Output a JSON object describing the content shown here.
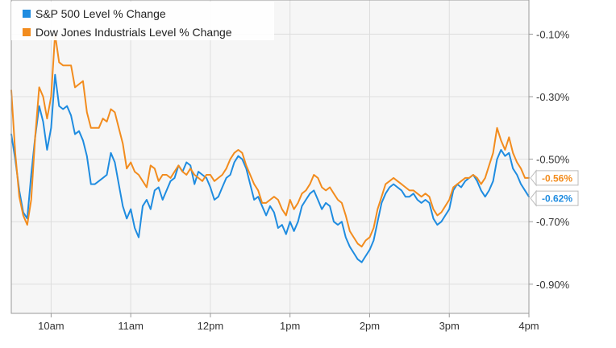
{
  "chart_data": {
    "type": "line",
    "title": "",
    "xlabel": "",
    "ylabel": "",
    "x_ticks": [
      "10am",
      "11am",
      "12pm",
      "1pm",
      "2pm",
      "3pm",
      "4pm"
    ],
    "y_ticks": [
      "-0.10%",
      "-0.30%",
      "-0.50%",
      "-0.70%",
      "-0.90%"
    ],
    "y_tick_values": [
      -0.1,
      -0.3,
      -0.5,
      -0.7,
      -0.9
    ],
    "ylim": [
      -1.0,
      0.0
    ],
    "xlim": [
      "9:30am",
      "4pm"
    ],
    "grid": true,
    "legend_position": "top-left",
    "series": [
      {
        "name": "S&P 500 Level % Change",
        "color": "#1f8ce0",
        "end_label": "-0.62%",
        "points": [
          [
            "9:30am",
            -0.42
          ],
          [
            "9:33am",
            -0.5
          ],
          [
            "9:36am",
            -0.6
          ],
          [
            "9:39am",
            -0.67
          ],
          [
            "9:42am",
            -0.69
          ],
          [
            "9:45am",
            -0.55
          ],
          [
            "9:48am",
            -0.43
          ],
          [
            "9:51am",
            -0.33
          ],
          [
            "9:54am",
            -0.38
          ],
          [
            "9:57am",
            -0.47
          ],
          [
            "10:00am",
            -0.4
          ],
          [
            "10:03am",
            -0.23
          ],
          [
            "10:06am",
            -0.33
          ],
          [
            "10:09am",
            -0.34
          ],
          [
            "10:12am",
            -0.33
          ],
          [
            "10:15am",
            -0.36
          ],
          [
            "10:18am",
            -0.42
          ],
          [
            "10:21am",
            -0.41
          ],
          [
            "10:24am",
            -0.44
          ],
          [
            "10:27am",
            -0.49
          ],
          [
            "10:30am",
            -0.58
          ],
          [
            "10:33am",
            -0.58
          ],
          [
            "10:36am",
            -0.57
          ],
          [
            "10:39am",
            -0.56
          ],
          [
            "10:42am",
            -0.55
          ],
          [
            "10:45am",
            -0.48
          ],
          [
            "10:48am",
            -0.51
          ],
          [
            "10:51am",
            -0.58
          ],
          [
            "10:54am",
            -0.65
          ],
          [
            "10:57am",
            -0.69
          ],
          [
            "11:00am",
            -0.66
          ],
          [
            "11:03am",
            -0.72
          ],
          [
            "11:06am",
            -0.75
          ],
          [
            "11:09am",
            -0.65
          ],
          [
            "11:12am",
            -0.63
          ],
          [
            "11:15am",
            -0.66
          ],
          [
            "11:18am",
            -0.6
          ],
          [
            "11:21am",
            -0.59
          ],
          [
            "11:24am",
            -0.63
          ],
          [
            "11:27am",
            -0.6
          ],
          [
            "11:30am",
            -0.57
          ],
          [
            "11:33am",
            -0.56
          ],
          [
            "11:36am",
            -0.52
          ],
          [
            "11:39am",
            -0.54
          ],
          [
            "11:42am",
            -0.51
          ],
          [
            "11:45am",
            -0.52
          ],
          [
            "11:48am",
            -0.58
          ],
          [
            "11:51am",
            -0.54
          ],
          [
            "11:54am",
            -0.55
          ],
          [
            "11:57am",
            -0.56
          ],
          [
            "12:00pm",
            -0.59
          ],
          [
            "12:03pm",
            -0.63
          ],
          [
            "12:06pm",
            -0.62
          ],
          [
            "12:09pm",
            -0.59
          ],
          [
            "12:12pm",
            -0.56
          ],
          [
            "12:15pm",
            -0.55
          ],
          [
            "12:18pm",
            -0.51
          ],
          [
            "12:21pm",
            -0.49
          ],
          [
            "12:24pm",
            -0.5
          ],
          [
            "12:27pm",
            -0.53
          ],
          [
            "12:30pm",
            -0.58
          ],
          [
            "12:33pm",
            -0.63
          ],
          [
            "12:36pm",
            -0.62
          ],
          [
            "12:39pm",
            -0.65
          ],
          [
            "12:42pm",
            -0.68
          ],
          [
            "12:45pm",
            -0.65
          ],
          [
            "12:48pm",
            -0.67
          ],
          [
            "12:51pm",
            -0.72
          ],
          [
            "12:54pm",
            -0.71
          ],
          [
            "12:57pm",
            -0.74
          ],
          [
            "1:00pm",
            -0.7
          ],
          [
            "1:03pm",
            -0.73
          ],
          [
            "1:06pm",
            -0.7
          ],
          [
            "1:09pm",
            -0.65
          ],
          [
            "1:12pm",
            -0.63
          ],
          [
            "1:15pm",
            -0.61
          ],
          [
            "1:18pm",
            -0.6
          ],
          [
            "1:21pm",
            -0.63
          ],
          [
            "1:24pm",
            -0.66
          ],
          [
            "1:27pm",
            -0.64
          ],
          [
            "1:30pm",
            -0.65
          ],
          [
            "1:33pm",
            -0.7
          ],
          [
            "1:36pm",
            -0.71
          ],
          [
            "1:39pm",
            -0.7
          ],
          [
            "1:42pm",
            -0.75
          ],
          [
            "1:45pm",
            -0.78
          ],
          [
            "1:48pm",
            -0.8
          ],
          [
            "1:51pm",
            -0.82
          ],
          [
            "1:54pm",
            -0.83
          ],
          [
            "1:57pm",
            -0.81
          ],
          [
            "2:00pm",
            -0.79
          ],
          [
            "2:03pm",
            -0.76
          ],
          [
            "2:06pm",
            -0.7
          ],
          [
            "2:09pm",
            -0.64
          ],
          [
            "2:12pm",
            -0.61
          ],
          [
            "2:15pm",
            -0.59
          ],
          [
            "2:18pm",
            -0.58
          ],
          [
            "2:21pm",
            -0.59
          ],
          [
            "2:24pm",
            -0.6
          ],
          [
            "2:27pm",
            -0.62
          ],
          [
            "2:30pm",
            -0.62
          ],
          [
            "2:33pm",
            -0.61
          ],
          [
            "2:36pm",
            -0.63
          ],
          [
            "2:39pm",
            -0.64
          ],
          [
            "2:42pm",
            -0.63
          ],
          [
            "2:45pm",
            -0.64
          ],
          [
            "2:48pm",
            -0.69
          ],
          [
            "2:51pm",
            -0.71
          ],
          [
            "2:54pm",
            -0.7
          ],
          [
            "2:57pm",
            -0.68
          ],
          [
            "3:00pm",
            -0.66
          ],
          [
            "3:03pm",
            -0.6
          ],
          [
            "3:06pm",
            -0.58
          ],
          [
            "3:09pm",
            -0.59
          ],
          [
            "3:12pm",
            -0.57
          ],
          [
            "3:15pm",
            -0.56
          ],
          [
            "3:18pm",
            -0.55
          ],
          [
            "3:21pm",
            -0.57
          ],
          [
            "3:24pm",
            -0.6
          ],
          [
            "3:27pm",
            -0.62
          ],
          [
            "3:30pm",
            -0.6
          ],
          [
            "3:33pm",
            -0.57
          ],
          [
            "3:36pm",
            -0.5
          ],
          [
            "3:39pm",
            -0.47
          ],
          [
            "3:42pm",
            -0.49
          ],
          [
            "3:45pm",
            -0.48
          ],
          [
            "3:48pm",
            -0.53
          ],
          [
            "3:51pm",
            -0.55
          ],
          [
            "3:54pm",
            -0.58
          ],
          [
            "3:57pm",
            -0.6
          ],
          [
            "4:00pm",
            -0.62
          ]
        ]
      },
      {
        "name": "Dow Jones Industrials Level % Change",
        "color": "#f28c1e",
        "end_label": "-0.56%",
        "points": [
          [
            "9:30am",
            -0.28
          ],
          [
            "9:33am",
            -0.48
          ],
          [
            "9:36am",
            -0.62
          ],
          [
            "9:39am",
            -0.68
          ],
          [
            "9:42am",
            -0.71
          ],
          [
            "9:45am",
            -0.63
          ],
          [
            "9:48am",
            -0.43
          ],
          [
            "9:51am",
            -0.27
          ],
          [
            "9:54am",
            -0.3
          ],
          [
            "9:57am",
            -0.37
          ],
          [
            "10:00am",
            -0.3
          ],
          [
            "10:03am",
            -0.1
          ],
          [
            "10:06am",
            -0.19
          ],
          [
            "10:09am",
            -0.2
          ],
          [
            "10:12am",
            -0.2
          ],
          [
            "10:15am",
            -0.2
          ],
          [
            "10:18am",
            -0.27
          ],
          [
            "10:21am",
            -0.26
          ],
          [
            "10:24am",
            -0.25
          ],
          [
            "10:27am",
            -0.35
          ],
          [
            "10:30am",
            -0.4
          ],
          [
            "10:33am",
            -0.4
          ],
          [
            "10:36am",
            -0.4
          ],
          [
            "10:39am",
            -0.37
          ],
          [
            "10:42am",
            -0.38
          ],
          [
            "10:45am",
            -0.34
          ],
          [
            "10:48am",
            -0.35
          ],
          [
            "10:51am",
            -0.4
          ],
          [
            "10:54am",
            -0.45
          ],
          [
            "10:57am",
            -0.53
          ],
          [
            "11:00am",
            -0.51
          ],
          [
            "11:03am",
            -0.54
          ],
          [
            "11:06am",
            -0.55
          ],
          [
            "11:09am",
            -0.57
          ],
          [
            "11:12am",
            -0.59
          ],
          [
            "11:15am",
            -0.52
          ],
          [
            "11:18am",
            -0.53
          ],
          [
            "11:21am",
            -0.57
          ],
          [
            "11:24am",
            -0.55
          ],
          [
            "11:27am",
            -0.55
          ],
          [
            "11:30am",
            -0.56
          ],
          [
            "11:33am",
            -0.54
          ],
          [
            "11:36am",
            -0.52
          ],
          [
            "11:39am",
            -0.54
          ],
          [
            "11:42am",
            -0.55
          ],
          [
            "11:45am",
            -0.53
          ],
          [
            "11:48am",
            -0.55
          ],
          [
            "11:51am",
            -0.56
          ],
          [
            "11:54am",
            -0.57
          ],
          [
            "11:57am",
            -0.55
          ],
          [
            "12:00pm",
            -0.55
          ],
          [
            "12:03pm",
            -0.57
          ],
          [
            "12:06pm",
            -0.56
          ],
          [
            "12:09pm",
            -0.55
          ],
          [
            "12:12pm",
            -0.53
          ],
          [
            "12:15pm",
            -0.5
          ],
          [
            "12:18pm",
            -0.48
          ],
          [
            "12:21pm",
            -0.47
          ],
          [
            "12:24pm",
            -0.48
          ],
          [
            "12:27pm",
            -0.52
          ],
          [
            "12:30pm",
            -0.55
          ],
          [
            "12:33pm",
            -0.58
          ],
          [
            "12:36pm",
            -0.6
          ],
          [
            "12:39pm",
            -0.64
          ],
          [
            "12:42pm",
            -0.64
          ],
          [
            "12:45pm",
            -0.63
          ],
          [
            "12:48pm",
            -0.62
          ],
          [
            "12:51pm",
            -0.63
          ],
          [
            "12:54pm",
            -0.66
          ],
          [
            "12:57pm",
            -0.68
          ],
          [
            "1:00pm",
            -0.63
          ],
          [
            "1:03pm",
            -0.66
          ],
          [
            "1:06pm",
            -0.64
          ],
          [
            "1:09pm",
            -0.61
          ],
          [
            "1:12pm",
            -0.6
          ],
          [
            "1:15pm",
            -0.58
          ],
          [
            "1:18pm",
            -0.55
          ],
          [
            "1:21pm",
            -0.56
          ],
          [
            "1:24pm",
            -0.59
          ],
          [
            "1:27pm",
            -0.6
          ],
          [
            "1:30pm",
            -0.59
          ],
          [
            "1:33pm",
            -0.61
          ],
          [
            "1:36pm",
            -0.63
          ],
          [
            "1:39pm",
            -0.64
          ],
          [
            "1:42pm",
            -0.68
          ],
          [
            "1:45pm",
            -0.73
          ],
          [
            "1:48pm",
            -0.75
          ],
          [
            "1:51pm",
            -0.77
          ],
          [
            "1:54pm",
            -0.78
          ],
          [
            "1:57pm",
            -0.76
          ],
          [
            "2:00pm",
            -0.75
          ],
          [
            "2:03pm",
            -0.72
          ],
          [
            "2:06pm",
            -0.66
          ],
          [
            "2:09pm",
            -0.62
          ],
          [
            "2:12pm",
            -0.58
          ],
          [
            "2:15pm",
            -0.57
          ],
          [
            "2:18pm",
            -0.56
          ],
          [
            "2:21pm",
            -0.57
          ],
          [
            "2:24pm",
            -0.58
          ],
          [
            "2:27pm",
            -0.59
          ],
          [
            "2:30pm",
            -0.6
          ],
          [
            "2:33pm",
            -0.6
          ],
          [
            "2:36pm",
            -0.61
          ],
          [
            "2:39pm",
            -0.62
          ],
          [
            "2:42pm",
            -0.61
          ],
          [
            "2:45pm",
            -0.62
          ],
          [
            "2:48pm",
            -0.66
          ],
          [
            "2:51pm",
            -0.68
          ],
          [
            "2:54pm",
            -0.67
          ],
          [
            "2:57pm",
            -0.65
          ],
          [
            "3:00pm",
            -0.63
          ],
          [
            "3:03pm",
            -0.59
          ],
          [
            "3:06pm",
            -0.58
          ],
          [
            "3:09pm",
            -0.57
          ],
          [
            "3:12pm",
            -0.56
          ],
          [
            "3:15pm",
            -0.56
          ],
          [
            "3:18pm",
            -0.55
          ],
          [
            "3:21pm",
            -0.56
          ],
          [
            "3:24pm",
            -0.58
          ],
          [
            "3:27pm",
            -0.56
          ],
          [
            "3:30pm",
            -0.52
          ],
          [
            "3:33pm",
            -0.48
          ],
          [
            "3:36pm",
            -0.4
          ],
          [
            "3:39pm",
            -0.44
          ],
          [
            "3:42pm",
            -0.47
          ],
          [
            "3:45pm",
            -0.43
          ],
          [
            "3:48pm",
            -0.48
          ],
          [
            "3:51pm",
            -0.51
          ],
          [
            "3:54pm",
            -0.53
          ],
          [
            "3:57pm",
            -0.56
          ],
          [
            "4:00pm",
            -0.56
          ]
        ]
      }
    ]
  }
}
